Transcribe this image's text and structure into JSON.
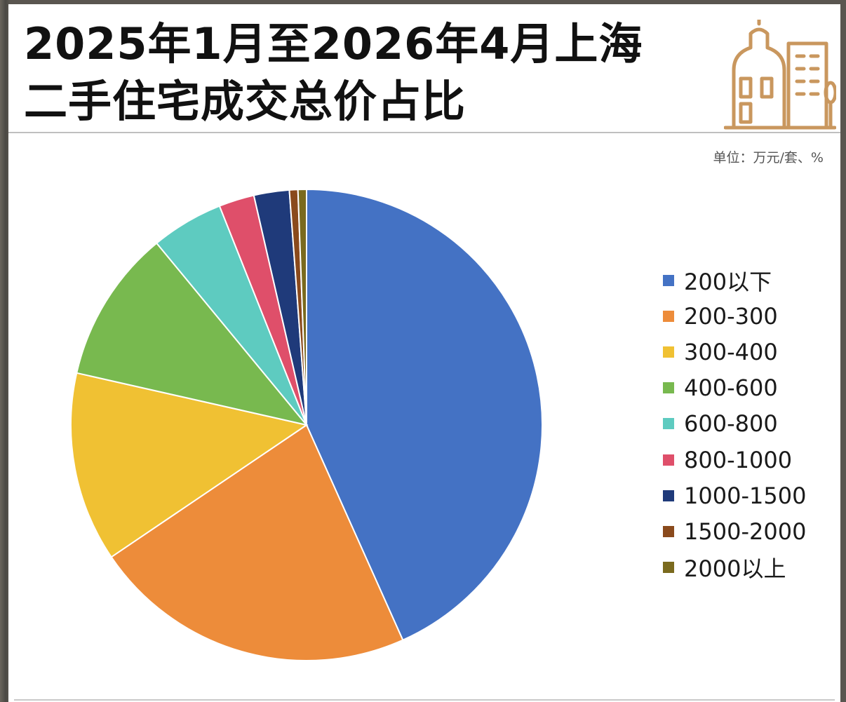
{
  "title_line1": "2025年1月至2026年4月上海",
  "title_line2": "二手住宅成交总价占比",
  "unit": "单位：万元/套、%",
  "building_icon": "building-icon",
  "colors": {
    "icon": "#c9975e",
    "slice_border": "#ffffff"
  },
  "chart_data": {
    "type": "pie",
    "title": "2025年1月至2026年4月上海二手住宅成交总价占比",
    "unit": "单位：万元/套、%",
    "categories": [
      "200以下",
      "200-300",
      "300-400",
      "400-600",
      "600-800",
      "800-1000",
      "1000-1500",
      "1500-2000",
      "2000以上"
    ],
    "values": [
      44.6,
      22.9,
      13.4,
      10.8,
      5.1,
      2.5,
      2.5,
      0.6,
      0.6
    ],
    "colors": [
      "#4472c4",
      "#ed8c3a",
      "#f0c133",
      "#78b94f",
      "#5ecbc0",
      "#df4f6a",
      "#1f3a7a",
      "#8a4a1c",
      "#7a6a1e"
    ],
    "legend_position": "right",
    "start_angle_deg": 0,
    "direction": "clockwise"
  }
}
